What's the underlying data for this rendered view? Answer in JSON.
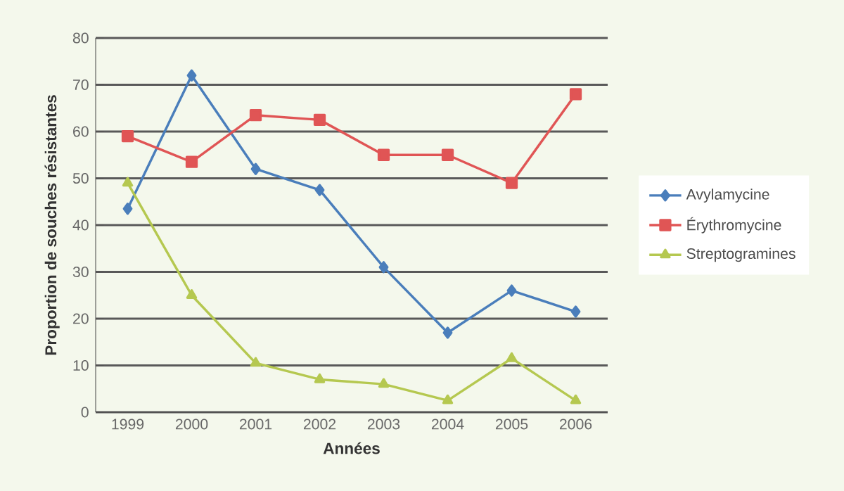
{
  "chart_data": {
    "type": "line",
    "xlabel": "Années",
    "ylabel": "Proportion de souches résistantes",
    "categories": [
      "1999",
      "2000",
      "2001",
      "2002",
      "2003",
      "2004",
      "2005",
      "2006"
    ],
    "series": [
      {
        "name": "Avylamycine",
        "color": "#4a7ebb",
        "marker": "diamond",
        "values": [
          43.5,
          72,
          52,
          47.5,
          31,
          17,
          26,
          21.5
        ]
      },
      {
        "name": "Érythromycine",
        "color": "#e05555",
        "marker": "square",
        "values": [
          59,
          53.5,
          63.5,
          62.5,
          55,
          55,
          49,
          68
        ]
      },
      {
        "name": "Streptogramines",
        "color": "#b5c850",
        "marker": "triangle",
        "values": [
          49,
          25,
          10.5,
          7,
          6,
          2.5,
          11.5,
          2.5
        ]
      }
    ],
    "ylim": [
      0,
      80
    ],
    "yticks": [
      0,
      10,
      20,
      30,
      40,
      50,
      60,
      70,
      80
    ],
    "grid": "y",
    "legend": "right",
    "line_style": "solid"
  }
}
